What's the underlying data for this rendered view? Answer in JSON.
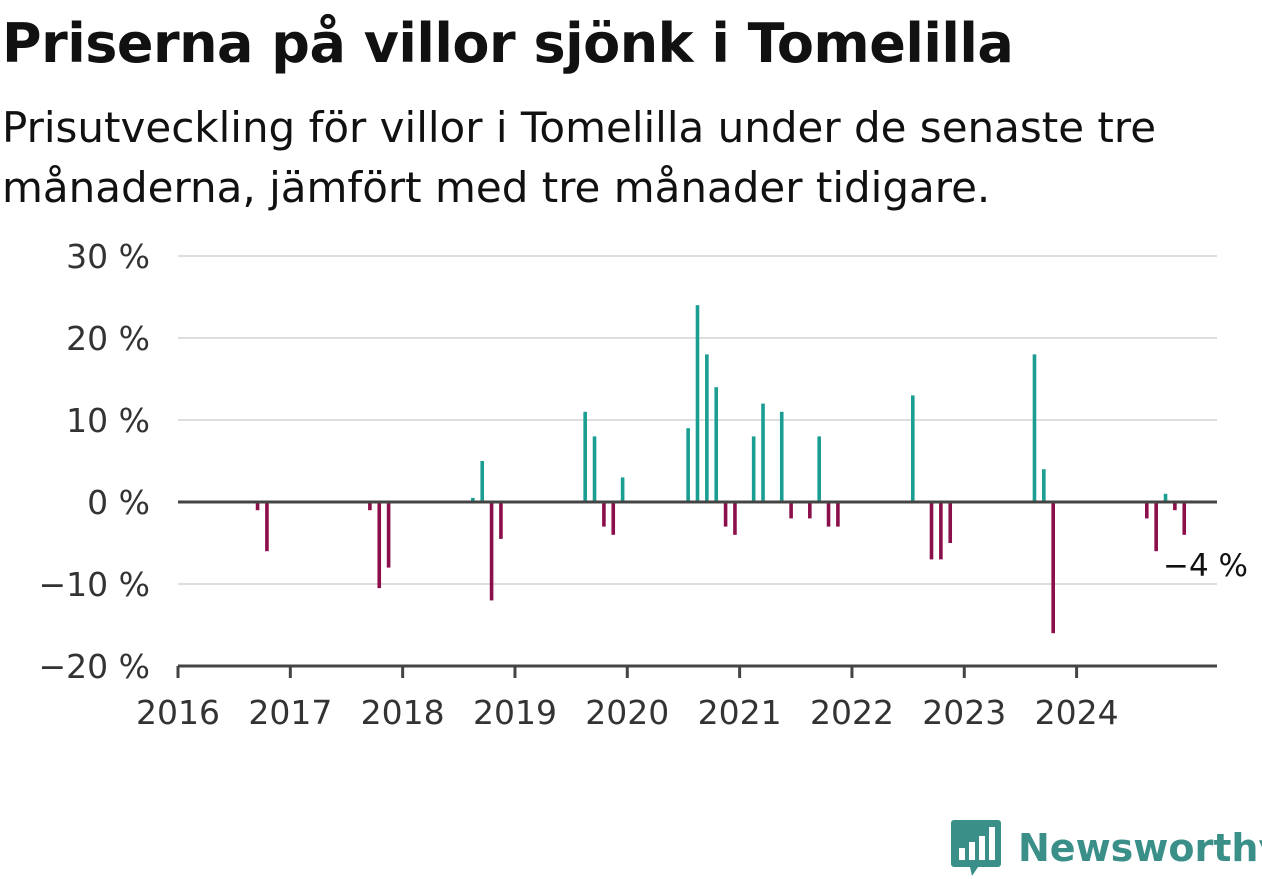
{
  "title": "Priserna på villor sjönk i Tomelilla",
  "subtitle": "Prisutveckling för villor i Tomelilla under de senaste tre månaderna, jämfört med tre månader tidigare.",
  "brand": "Newsworthy",
  "colors": {
    "positive": "#1a9e92",
    "negative": "#8b0f4a",
    "grid": "#dedede",
    "axis": "#444444",
    "brand": "#3a8f89"
  },
  "chart_data": {
    "type": "bar",
    "ylim": [
      -20,
      30
    ],
    "y_ticks": [
      {
        "value": 30,
        "label": "30 %"
      },
      {
        "value": 20,
        "label": "20 %"
      },
      {
        "value": 10,
        "label": "10 %"
      },
      {
        "value": 0,
        "label": "0 %"
      },
      {
        "value": -10,
        "label": "−10 %"
      },
      {
        "value": -20,
        "label": "−20 %"
      }
    ],
    "x_ticks": [
      "2016",
      "2017",
      "2018",
      "2019",
      "2020",
      "2021",
      "2022",
      "2023",
      "2024"
    ],
    "x_range": [
      "2016-01",
      "2025-04"
    ],
    "grid": true,
    "annotation": {
      "text": "−4 %",
      "date": "2024-10"
    },
    "series": [
      {
        "values": [
          {
            "date": "2016-09",
            "value": -1
          },
          {
            "date": "2016-10",
            "value": -6
          },
          {
            "date": "2017-09",
            "value": -1
          },
          {
            "date": "2017-10",
            "value": -10.5
          },
          {
            "date": "2017-11",
            "value": -8
          },
          {
            "date": "2018-08",
            "value": 0.5
          },
          {
            "date": "2018-09",
            "value": 5
          },
          {
            "date": "2018-10",
            "value": -12
          },
          {
            "date": "2018-11",
            "value": -4.5
          },
          {
            "date": "2019-08",
            "value": 11
          },
          {
            "date": "2019-09",
            "value": 8
          },
          {
            "date": "2019-10",
            "value": -3
          },
          {
            "date": "2019-11",
            "value": -4
          },
          {
            "date": "2019-12",
            "value": 3
          },
          {
            "date": "2020-07",
            "value": 9
          },
          {
            "date": "2020-08",
            "value": 24
          },
          {
            "date": "2020-09",
            "value": 18
          },
          {
            "date": "2020-10",
            "value": 14
          },
          {
            "date": "2020-11",
            "value": -3
          },
          {
            "date": "2020-12",
            "value": -4
          },
          {
            "date": "2021-02",
            "value": 8
          },
          {
            "date": "2021-03",
            "value": 12
          },
          {
            "date": "2021-05",
            "value": 11
          },
          {
            "date": "2021-06",
            "value": -2
          },
          {
            "date": "2021-08",
            "value": -2
          },
          {
            "date": "2021-09",
            "value": 8
          },
          {
            "date": "2021-10",
            "value": -3
          },
          {
            "date": "2021-11",
            "value": -3
          },
          {
            "date": "2022-07",
            "value": 13
          },
          {
            "date": "2022-09",
            "value": -7
          },
          {
            "date": "2022-10",
            "value": -7
          },
          {
            "date": "2022-11",
            "value": -5
          },
          {
            "date": "2023-08",
            "value": 18
          },
          {
            "date": "2023-09",
            "value": 4
          },
          {
            "date": "2023-10",
            "value": -16
          },
          {
            "date": "2024-08",
            "value": -2
          },
          {
            "date": "2024-09",
            "value": -6
          },
          {
            "date": "2024-10",
            "value": 1
          },
          {
            "date": "2024-11",
            "value": -1
          },
          {
            "date": "2024-12",
            "value": -4
          }
        ]
      }
    ]
  }
}
